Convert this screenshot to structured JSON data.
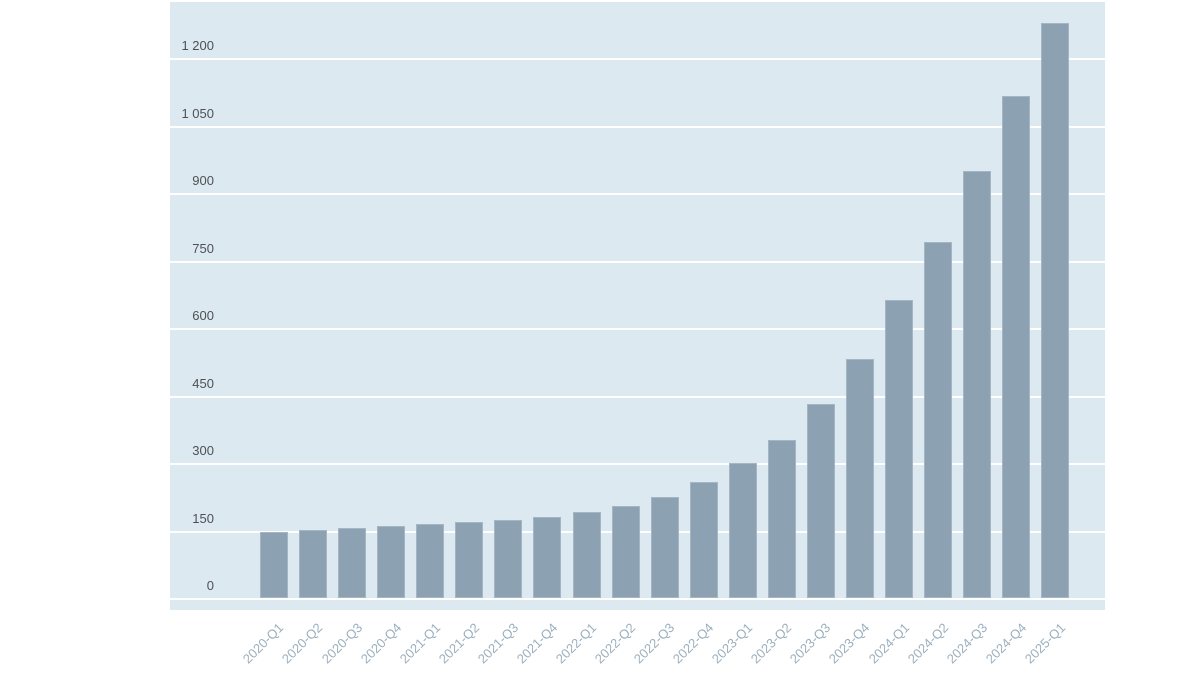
{
  "chart_data": {
    "type": "bar",
    "title": "",
    "xlabel": "",
    "ylabel": "",
    "legend": "none",
    "grid": "horizontal",
    "categories": [
      "2020-Q1",
      "2020-Q2",
      "2020-Q3",
      "2020-Q4",
      "2021-Q1",
      "2021-Q2",
      "2021-Q3",
      "2021-Q4",
      "2022-Q1",
      "2022-Q2",
      "2022-Q3",
      "2022-Q4",
      "2023-Q1",
      "2023-Q2",
      "2023-Q3",
      "2023-Q4",
      "2024-Q1",
      "2024-Q2",
      "2024-Q3",
      "2024-Q4",
      "2025-Q1"
    ],
    "values": [
      146,
      151,
      155,
      160,
      164,
      169,
      174,
      180,
      191,
      204,
      224,
      258,
      300,
      352,
      432,
      532,
      662,
      792,
      948,
      1115,
      1277
    ],
    "ylim": [
      0,
      1324
    ],
    "ytick_values": [
      0,
      150,
      300,
      450,
      600,
      750,
      900,
      1050,
      1200
    ],
    "ytick_labels": [
      "0",
      "150",
      "300",
      "450",
      "600",
      "750",
      "900",
      "1 050",
      "1 200"
    ],
    "colors": {
      "bar": "#8ca1b2",
      "plot_background": "#dce9f1",
      "gridline": "#ffffff",
      "ytick_text": "#4d5154",
      "xtick_text": "#9bafbe",
      "page_background": "#ffffff"
    }
  }
}
